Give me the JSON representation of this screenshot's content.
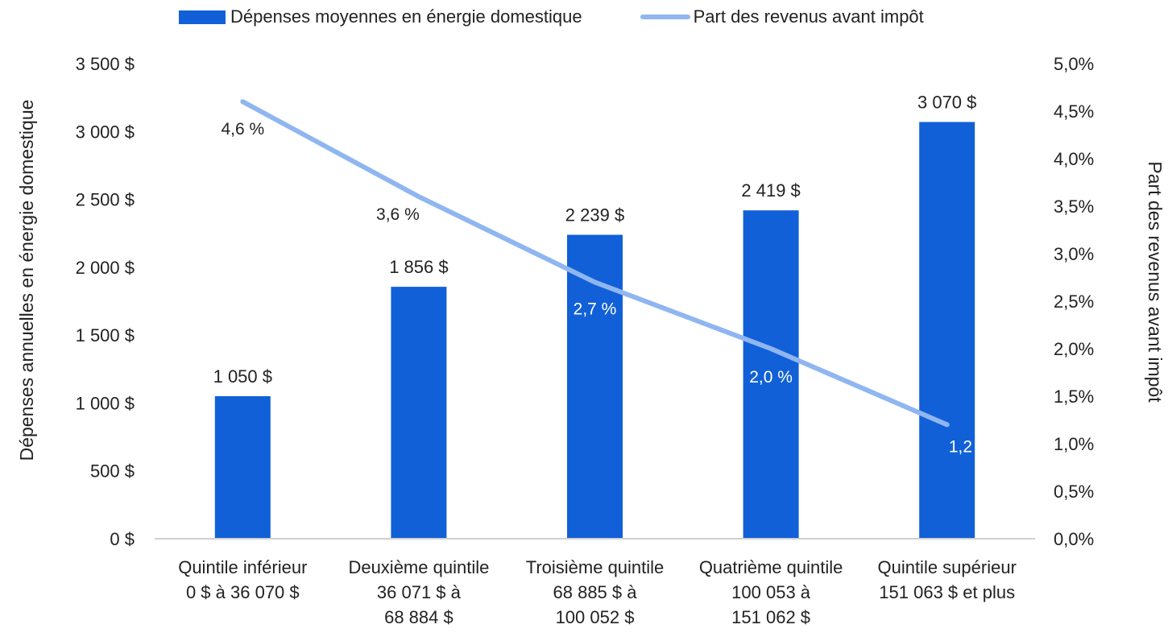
{
  "legend": {
    "bar_label": "Dépenses moyennes en énergie domestique",
    "line_label": "Part des revenus avant impôt"
  },
  "colors": {
    "bar": "#1160d8",
    "line": "#8fb6f0",
    "axis": "#d0d0d0",
    "text": "#222222"
  },
  "chart_data": {
    "type": "bar",
    "categories": [
      [
        "Quintile inférieur",
        "0 $ à 36 070 $"
      ],
      [
        "Deuxième quintile",
        "36 071 $ à",
        "68 884 $"
      ],
      [
        "Troisième quintile",
        "68 885 $ à",
        "100 052 $"
      ],
      [
        "Quatrième quintile",
        "100 053 à",
        "151 062 $"
      ],
      [
        "Quintile supérieur",
        "151 063 $ et plus"
      ]
    ],
    "series": [
      {
        "name": "Dépenses moyennes en énergie domestique",
        "type": "bar",
        "axis": "left",
        "values": [
          1050,
          1856,
          2239,
          2419,
          3070
        ],
        "labels": [
          "1 050 $",
          "1 856 $",
          "2 239 $",
          "2 419 $",
          "3 070 $"
        ]
      },
      {
        "name": "Part des revenus avant impôt",
        "type": "line",
        "axis": "right",
        "values": [
          4.6,
          3.6,
          2.7,
          2.0,
          1.2
        ],
        "labels": [
          "4,6 %",
          "3,6 %",
          "2,7 %",
          "2,0 %",
          "1,2 %"
        ]
      }
    ],
    "ylabel": "Dépenses annuelles en énergie domestique",
    "y2label": "Part des revenus avant impôt",
    "ylim": [
      0,
      3500
    ],
    "y2lim": [
      0,
      5.0
    ],
    "yticks": [
      0,
      500,
      1000,
      1500,
      2000,
      2500,
      3000,
      3500
    ],
    "ytick_labels": [
      "0 $",
      "500 $",
      "1 000 $",
      "1 500 $",
      "2 000 $",
      "2 500 $",
      "3 000 $",
      "3 500 $"
    ],
    "y2ticks": [
      0,
      0.5,
      1.0,
      1.5,
      2.0,
      2.5,
      3.0,
      3.5,
      4.0,
      4.5,
      5.0
    ],
    "y2tick_labels": [
      "0,0%",
      "0,5%",
      "1,0%",
      "1,5%",
      "2,0%",
      "2,5%",
      "3,0%",
      "3,5%",
      "4,0%",
      "4,5%",
      "5,0%"
    ],
    "grid": false,
    "legend_position": "top"
  }
}
